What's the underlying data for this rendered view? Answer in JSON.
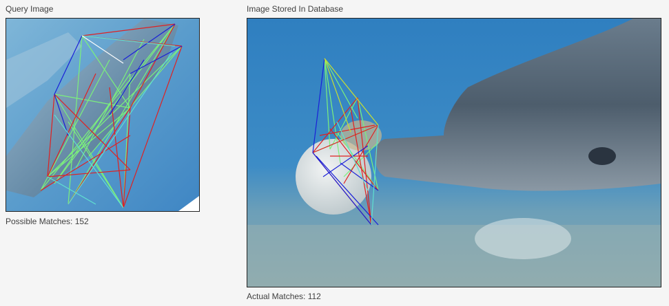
{
  "query_panel": {
    "title": "Query Image",
    "caption": "Possible Matches: 152"
  },
  "database_panel": {
    "title": "Image Stored In Database",
    "caption": "Actual Matches: 112"
  },
  "colors": {
    "water_query": "#5a9ccc",
    "water_db": "#3a86c2",
    "sand": "#8aa7ad",
    "dolphin": "#4d5d6c",
    "match_red": "#e02020",
    "match_green": "#7cf07c",
    "match_blue": "#1a20d8",
    "match_yellow": "#c8e030",
    "match_cyan": "#60e0d0"
  }
}
